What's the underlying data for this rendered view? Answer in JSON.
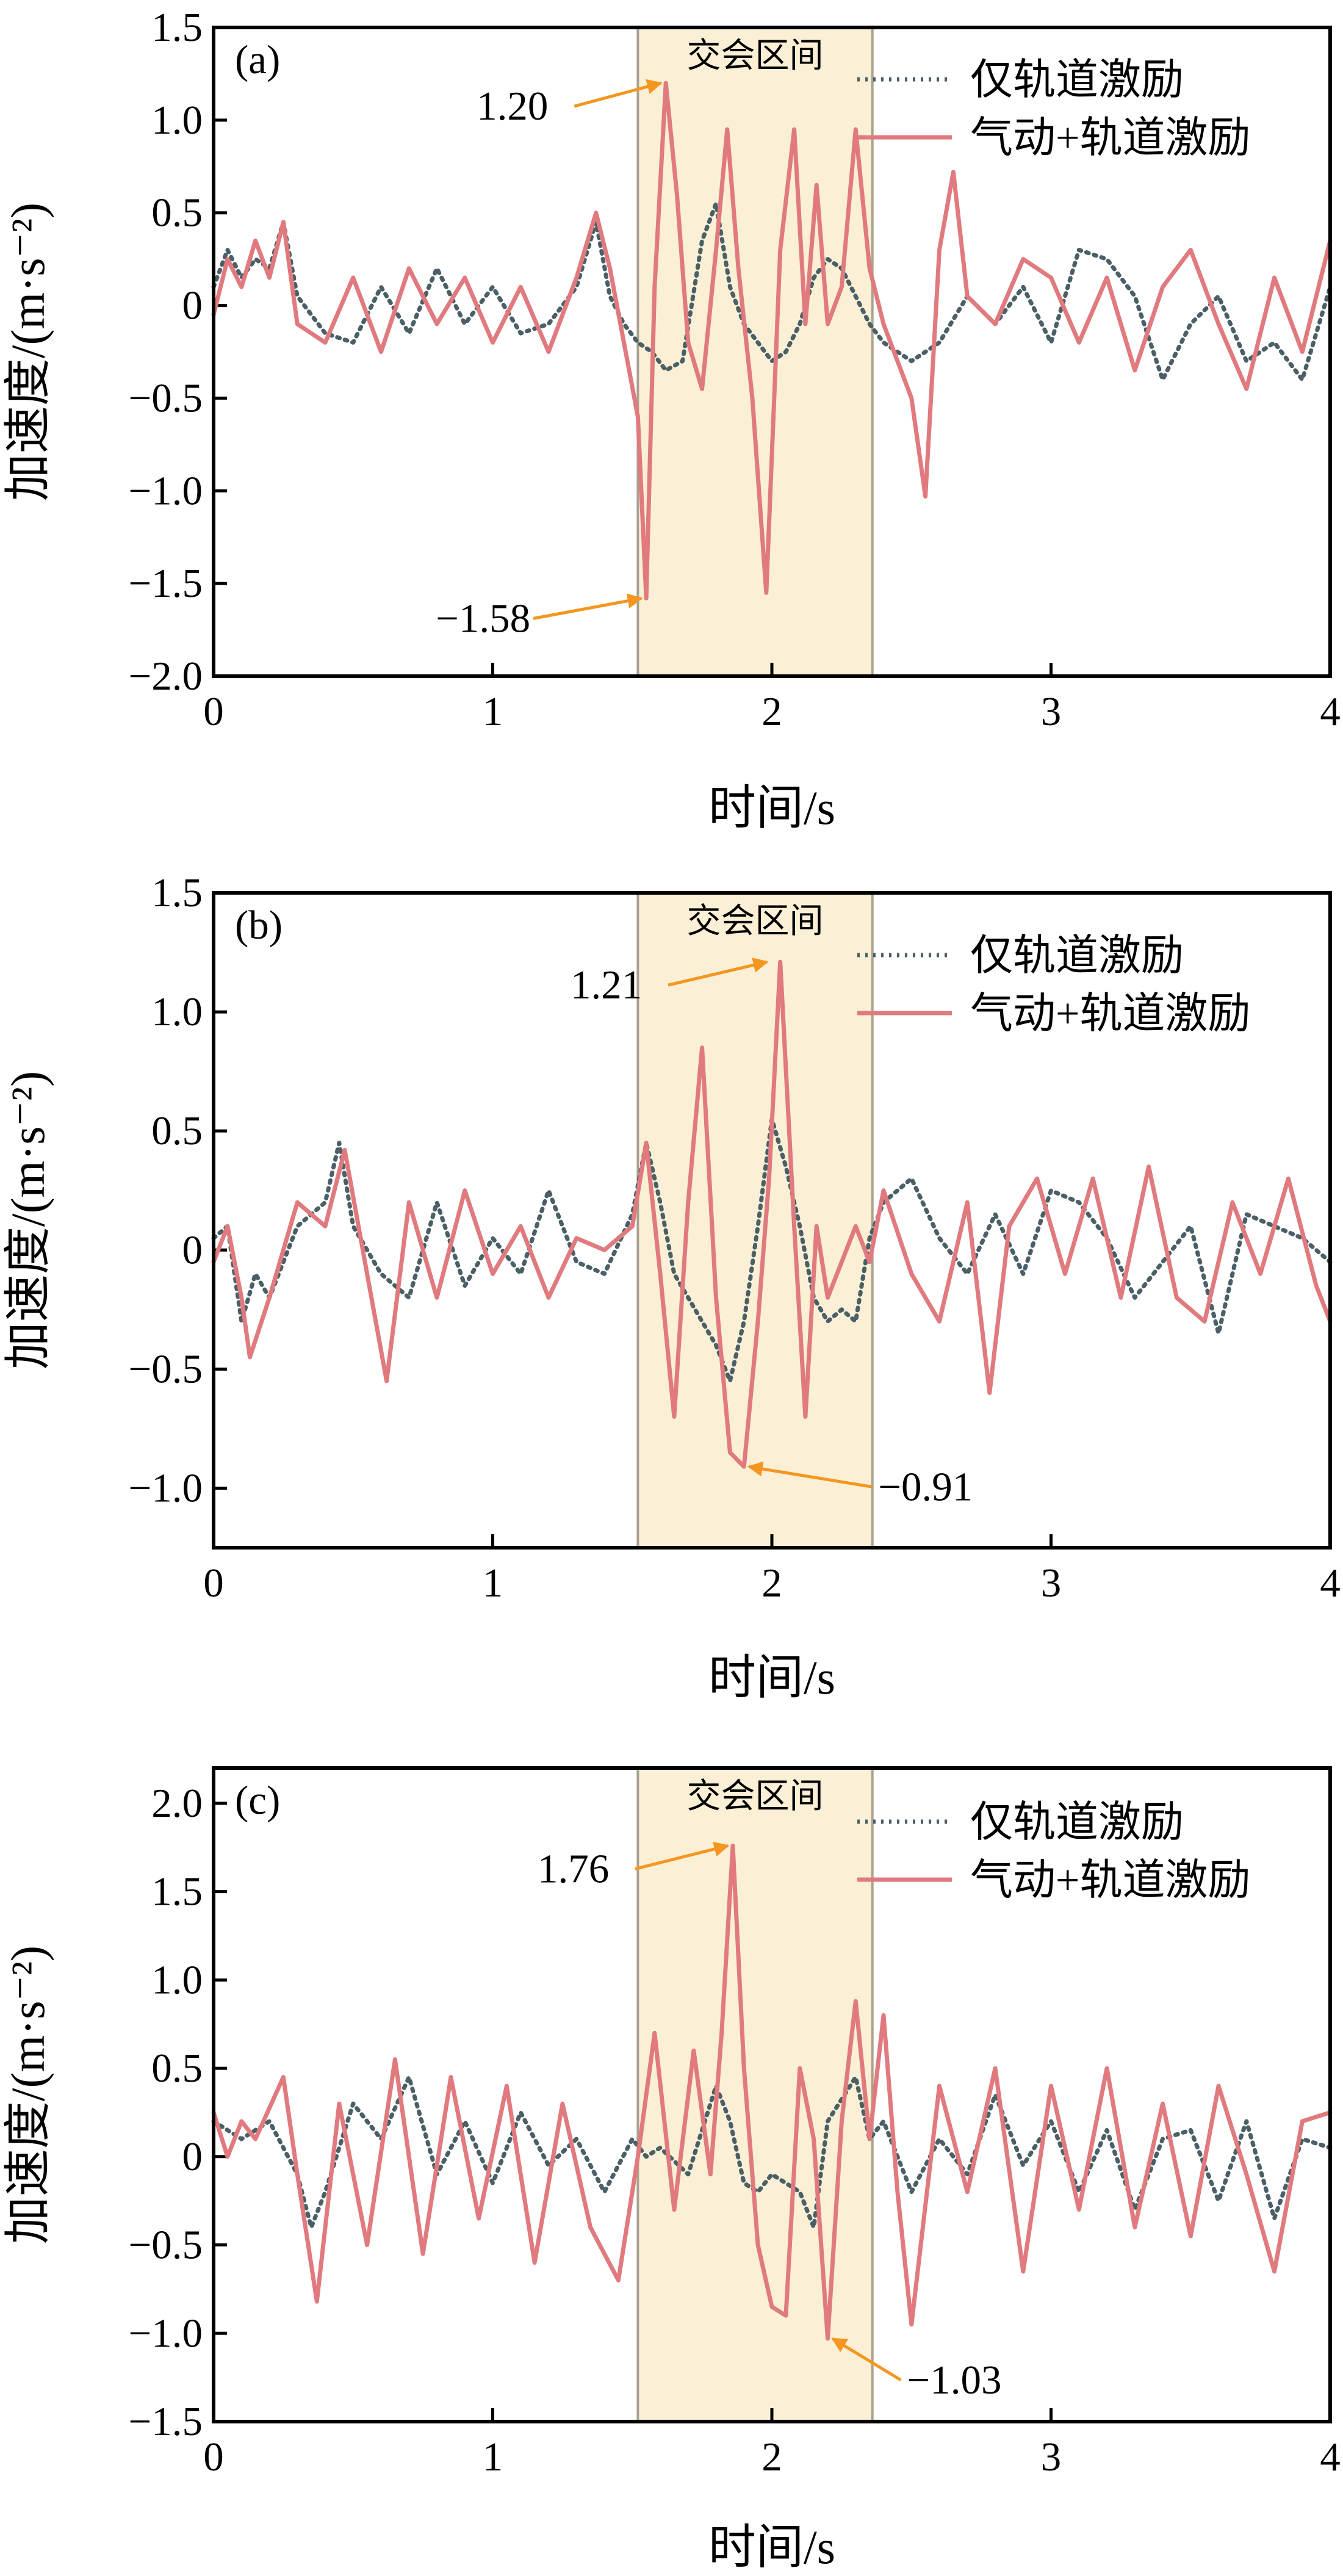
{
  "figure": {
    "shared": {
      "xlabel": "时间/s",
      "ylabel": "加速度/(m·s⁻²)",
      "legend": [
        "仅轨道激励",
        "气动+轨道激励"
      ],
      "zone_label": "交会区间",
      "zone_x": [
        1.52,
        2.36
      ],
      "xlim": [
        0,
        4
      ],
      "xticks": [
        "0",
        "1",
        "2",
        "3",
        "4"
      ]
    },
    "colors": {
      "track_only": "#4a5f66",
      "aero_track": "#e07a7e",
      "zone_fill": "#fbf0d6",
      "zone_edge": "#a9a290",
      "annotation": "#f4961f",
      "frame": "#000000"
    }
  },
  "chart_data": [
    {
      "type": "line",
      "panel_label": "(a)",
      "ylim": [
        -2.0,
        1.5
      ],
      "yticks": [
        "1.5",
        "1.0",
        "0.5",
        "0",
        "−0.5",
        "−1.0",
        "−1.5",
        "−2.0"
      ],
      "legend_placement": "top-right",
      "series": [
        {
          "name": "仅轨道激励",
          "style": "dotted",
          "x": [
            0,
            0.05,
            0.1,
            0.15,
            0.2,
            0.25,
            0.3,
            0.4,
            0.5,
            0.6,
            0.7,
            0.8,
            0.9,
            1.0,
            1.1,
            1.2,
            1.3,
            1.37,
            1.42,
            1.47,
            1.52,
            1.57,
            1.62,
            1.68,
            1.75,
            1.8,
            1.85,
            1.9,
            1.95,
            2.0,
            2.05,
            2.1,
            2.15,
            2.2,
            2.25,
            2.3,
            2.35,
            2.4,
            2.5,
            2.6,
            2.7,
            2.8,
            2.9,
            3.0,
            3.1,
            3.2,
            3.3,
            3.4,
            3.5,
            3.6,
            3.7,
            3.8,
            3.9,
            4.0
          ],
          "y": [
            0.1,
            0.3,
            0.15,
            0.25,
            0.2,
            0.45,
            0.05,
            -0.15,
            -0.2,
            0.1,
            -0.15,
            0.2,
            -0.1,
            0.1,
            -0.15,
            -0.1,
            0.1,
            0.45,
            0.05,
            -0.1,
            -0.2,
            -0.25,
            -0.35,
            -0.3,
            0.35,
            0.55,
            0.1,
            -0.1,
            -0.2,
            -0.3,
            -0.25,
            -0.1,
            0.15,
            0.25,
            0.2,
            0.05,
            -0.1,
            -0.2,
            -0.3,
            -0.2,
            0.05,
            -0.1,
            0.1,
            -0.2,
            0.3,
            0.25,
            0.05,
            -0.4,
            -0.1,
            0.05,
            -0.3,
            -0.2,
            -0.4,
            0.1
          ]
        },
        {
          "name": "气动+轨道激励",
          "style": "solid",
          "x": [
            0,
            0.05,
            0.1,
            0.15,
            0.2,
            0.25,
            0.3,
            0.4,
            0.5,
            0.6,
            0.7,
            0.8,
            0.9,
            1.0,
            1.1,
            1.2,
            1.3,
            1.37,
            1.42,
            1.47,
            1.52,
            1.55,
            1.58,
            1.62,
            1.66,
            1.7,
            1.75,
            1.8,
            1.84,
            1.88,
            1.93,
            1.98,
            2.03,
            2.08,
            2.12,
            2.16,
            2.2,
            2.25,
            2.3,
            2.35,
            2.4,
            2.45,
            2.5,
            2.55,
            2.6,
            2.65,
            2.7,
            2.8,
            2.9,
            3.0,
            3.1,
            3.2,
            3.3,
            3.4,
            3.5,
            3.6,
            3.7,
            3.8,
            3.9,
            4.0
          ],
          "y": [
            -0.05,
            0.25,
            0.1,
            0.35,
            0.15,
            0.45,
            -0.1,
            -0.2,
            0.15,
            -0.25,
            0.2,
            -0.1,
            0.15,
            -0.2,
            0.1,
            -0.25,
            0.15,
            0.5,
            0.2,
            -0.2,
            -0.6,
            -1.58,
            0.1,
            1.2,
            0.6,
            -0.2,
            -0.45,
            0.3,
            0.95,
            0.2,
            -0.5,
            -1.55,
            0.3,
            0.95,
            -0.1,
            0.65,
            -0.1,
            0.1,
            0.95,
            0.2,
            -0.1,
            -0.3,
            -0.5,
            -1.03,
            0.3,
            0.72,
            0.05,
            -0.1,
            0.25,
            0.15,
            -0.2,
            0.15,
            -0.35,
            0.1,
            0.3,
            -0.1,
            -0.45,
            0.15,
            -0.25,
            0.35
          ]
        }
      ],
      "annotations": [
        {
          "text": "1.20",
          "x": 1.62,
          "y": 1.2
        },
        {
          "text": "−1.58",
          "x": 1.55,
          "y": -1.58
        }
      ]
    },
    {
      "type": "line",
      "panel_label": "(b)",
      "ylim": [
        -1.25,
        1.5
      ],
      "yticks": [
        "1.5",
        "1.0",
        "0.5",
        "0",
        "−0.5",
        "−1.0"
      ],
      "legend_placement": "top-right",
      "series": [
        {
          "name": "仅轨道激励",
          "style": "dotted",
          "x": [
            0,
            0.05,
            0.1,
            0.15,
            0.2,
            0.3,
            0.4,
            0.45,
            0.5,
            0.6,
            0.7,
            0.8,
            0.9,
            1.0,
            1.1,
            1.2,
            1.3,
            1.4,
            1.5,
            1.55,
            1.6,
            1.65,
            1.7,
            1.75,
            1.8,
            1.85,
            1.9,
            1.95,
            2.0,
            2.05,
            2.1,
            2.15,
            2.2,
            2.25,
            2.3,
            2.35,
            2.4,
            2.5,
            2.6,
            2.7,
            2.8,
            2.9,
            3.0,
            3.1,
            3.2,
            3.3,
            3.4,
            3.5,
            3.6,
            3.7,
            3.8,
            3.9,
            4.0
          ],
          "y": [
            0.05,
            0.1,
            -0.3,
            -0.1,
            -0.2,
            0.1,
            0.2,
            0.45,
            0.1,
            -0.1,
            -0.2,
            0.2,
            -0.15,
            0.05,
            -0.1,
            0.25,
            -0.05,
            -0.1,
            0.15,
            0.45,
            0.2,
            -0.1,
            -0.2,
            -0.3,
            -0.4,
            -0.55,
            -0.3,
            0.1,
            0.55,
            0.35,
            0.1,
            -0.2,
            -0.3,
            -0.25,
            -0.3,
            0.05,
            0.2,
            0.3,
            0.05,
            -0.1,
            0.15,
            -0.1,
            0.25,
            0.2,
            0.05,
            -0.2,
            -0.05,
            0.1,
            -0.35,
            0.15,
            0.1,
            0.05,
            -0.05
          ]
        },
        {
          "name": "气动+轨道激励",
          "style": "solid",
          "x": [
            0,
            0.05,
            0.1,
            0.13,
            0.2,
            0.3,
            0.4,
            0.47,
            0.55,
            0.62,
            0.7,
            0.8,
            0.9,
            1.0,
            1.1,
            1.2,
            1.3,
            1.4,
            1.5,
            1.55,
            1.6,
            1.65,
            1.7,
            1.75,
            1.8,
            1.85,
            1.9,
            1.95,
            1.99,
            2.03,
            2.08,
            2.12,
            2.16,
            2.2,
            2.25,
            2.3,
            2.35,
            2.4,
            2.5,
            2.6,
            2.7,
            2.78,
            2.85,
            2.95,
            3.05,
            3.15,
            3.25,
            3.35,
            3.45,
            3.55,
            3.65,
            3.75,
            3.85,
            3.95,
            4.0
          ],
          "y": [
            -0.05,
            0.1,
            -0.2,
            -0.45,
            -0.2,
            0.2,
            0.1,
            0.42,
            -0.1,
            -0.55,
            0.2,
            -0.2,
            0.25,
            -0.1,
            0.1,
            -0.2,
            0.05,
            0.0,
            0.1,
            0.45,
            -0.1,
            -0.7,
            0.2,
            0.85,
            -0.2,
            -0.85,
            -0.91,
            -0.3,
            0.3,
            1.21,
            0.1,
            -0.7,
            0.1,
            -0.2,
            -0.05,
            0.1,
            -0.05,
            0.25,
            -0.1,
            -0.3,
            0.2,
            -0.6,
            0.1,
            0.3,
            -0.1,
            0.3,
            -0.2,
            0.35,
            -0.2,
            -0.3,
            0.2,
            -0.1,
            0.3,
            -0.15,
            -0.3
          ]
        }
      ],
      "annotations": [
        {
          "text": "1.21",
          "x": 2.0,
          "y": 1.21
        },
        {
          "text": "−0.91",
          "x": 1.9,
          "y": -0.91
        }
      ]
    },
    {
      "type": "line",
      "panel_label": "(c)",
      "ylim": [
        -1.5,
        2.2
      ],
      "yticks": [
        "2.0",
        "1.5",
        "1.0",
        "0.5",
        "0",
        "−0.5",
        "−1.0",
        "−1.5"
      ],
      "legend_placement": "top-right",
      "series": [
        {
          "name": "仅轨道激励",
          "style": "dotted",
          "x": [
            0,
            0.05,
            0.1,
            0.2,
            0.3,
            0.35,
            0.4,
            0.5,
            0.6,
            0.7,
            0.8,
            0.9,
            1.0,
            1.1,
            1.2,
            1.3,
            1.4,
            1.5,
            1.55,
            1.6,
            1.7,
            1.8,
            1.85,
            1.9,
            1.95,
            2.0,
            2.05,
            2.1,
            2.15,
            2.2,
            2.3,
            2.35,
            2.4,
            2.5,
            2.6,
            2.7,
            2.8,
            2.9,
            3.0,
            3.1,
            3.2,
            3.3,
            3.4,
            3.5,
            3.6,
            3.7,
            3.8,
            3.9,
            4.0
          ],
          "y": [
            0.2,
            0.15,
            0.1,
            0.2,
            -0.1,
            -0.4,
            -0.2,
            0.3,
            0.1,
            0.45,
            -0.1,
            0.2,
            -0.15,
            0.25,
            -0.05,
            0.1,
            -0.2,
            0.1,
            0.0,
            0.05,
            -0.1,
            0.4,
            0.2,
            -0.15,
            -0.2,
            -0.1,
            -0.15,
            -0.2,
            -0.4,
            0.2,
            0.45,
            0.1,
            0.2,
            -0.2,
            0.1,
            -0.1,
            0.35,
            -0.05,
            0.2,
            -0.2,
            0.15,
            -0.3,
            0.1,
            0.15,
            -0.25,
            0.2,
            -0.35,
            0.1,
            0.05
          ]
        },
        {
          "name": "气动+轨道激励",
          "style": "solid",
          "x": [
            0,
            0.05,
            0.1,
            0.15,
            0.25,
            0.3,
            0.37,
            0.45,
            0.55,
            0.65,
            0.75,
            0.85,
            0.95,
            1.05,
            1.15,
            1.25,
            1.35,
            1.45,
            1.52,
            1.58,
            1.65,
            1.72,
            1.78,
            1.82,
            1.86,
            1.9,
            1.95,
            2.0,
            2.05,
            2.1,
            2.15,
            2.2,
            2.25,
            2.3,
            2.35,
            2.4,
            2.45,
            2.5,
            2.6,
            2.7,
            2.8,
            2.9,
            3.0,
            3.1,
            3.2,
            3.3,
            3.4,
            3.5,
            3.6,
            3.7,
            3.8,
            3.9,
            4.0
          ],
          "y": [
            0.25,
            0.0,
            0.2,
            0.1,
            0.45,
            -0.1,
            -0.82,
            0.3,
            -0.5,
            0.55,
            -0.55,
            0.45,
            -0.35,
            0.4,
            -0.6,
            0.3,
            -0.4,
            -0.7,
            0.0,
            0.7,
            -0.3,
            0.6,
            -0.1,
            0.7,
            1.76,
            0.5,
            -0.5,
            -0.85,
            -0.9,
            0.5,
            0.1,
            -1.03,
            0.2,
            0.88,
            0.1,
            0.8,
            -0.2,
            -0.95,
            0.4,
            -0.2,
            0.5,
            -0.65,
            0.4,
            -0.3,
            0.5,
            -0.4,
            0.3,
            -0.45,
            0.4,
            -0.1,
            -0.65,
            0.2,
            0.25
          ]
        }
      ],
      "annotations": [
        {
          "text": "1.76",
          "x": 1.86,
          "y": 1.76
        },
        {
          "text": "−1.03",
          "x": 2.2,
          "y": -1.03
        }
      ]
    }
  ]
}
